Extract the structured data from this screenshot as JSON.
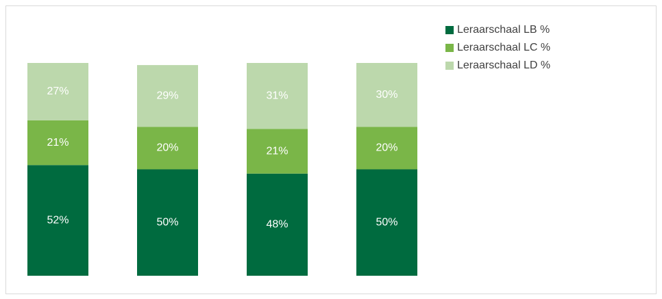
{
  "chart_data": {
    "type": "stacked_bar",
    "categories": [
      null,
      null,
      null,
      null
    ],
    "series": [
      {
        "name": "Leraarschaal LB %",
        "color": "#006b3f",
        "values": [
          52,
          50,
          48,
          50
        ],
        "value_labels": [
          "52%",
          "50%",
          "48%",
          "50%"
        ]
      },
      {
        "name": "Leraarschaal LC %",
        "color": "#7ab648",
        "values": [
          21,
          20,
          21,
          20
        ],
        "value_labels": [
          "21%",
          "20%",
          "21%",
          "20%"
        ]
      },
      {
        "name": "Leraarschaal LD %",
        "color": "#bcd8ac",
        "values": [
          27,
          29,
          31,
          30
        ],
        "value_labels": [
          "27%",
          "29%",
          "31%",
          "30%"
        ]
      }
    ],
    "ylim": [
      0,
      100
    ],
    "legend": "top-right"
  }
}
